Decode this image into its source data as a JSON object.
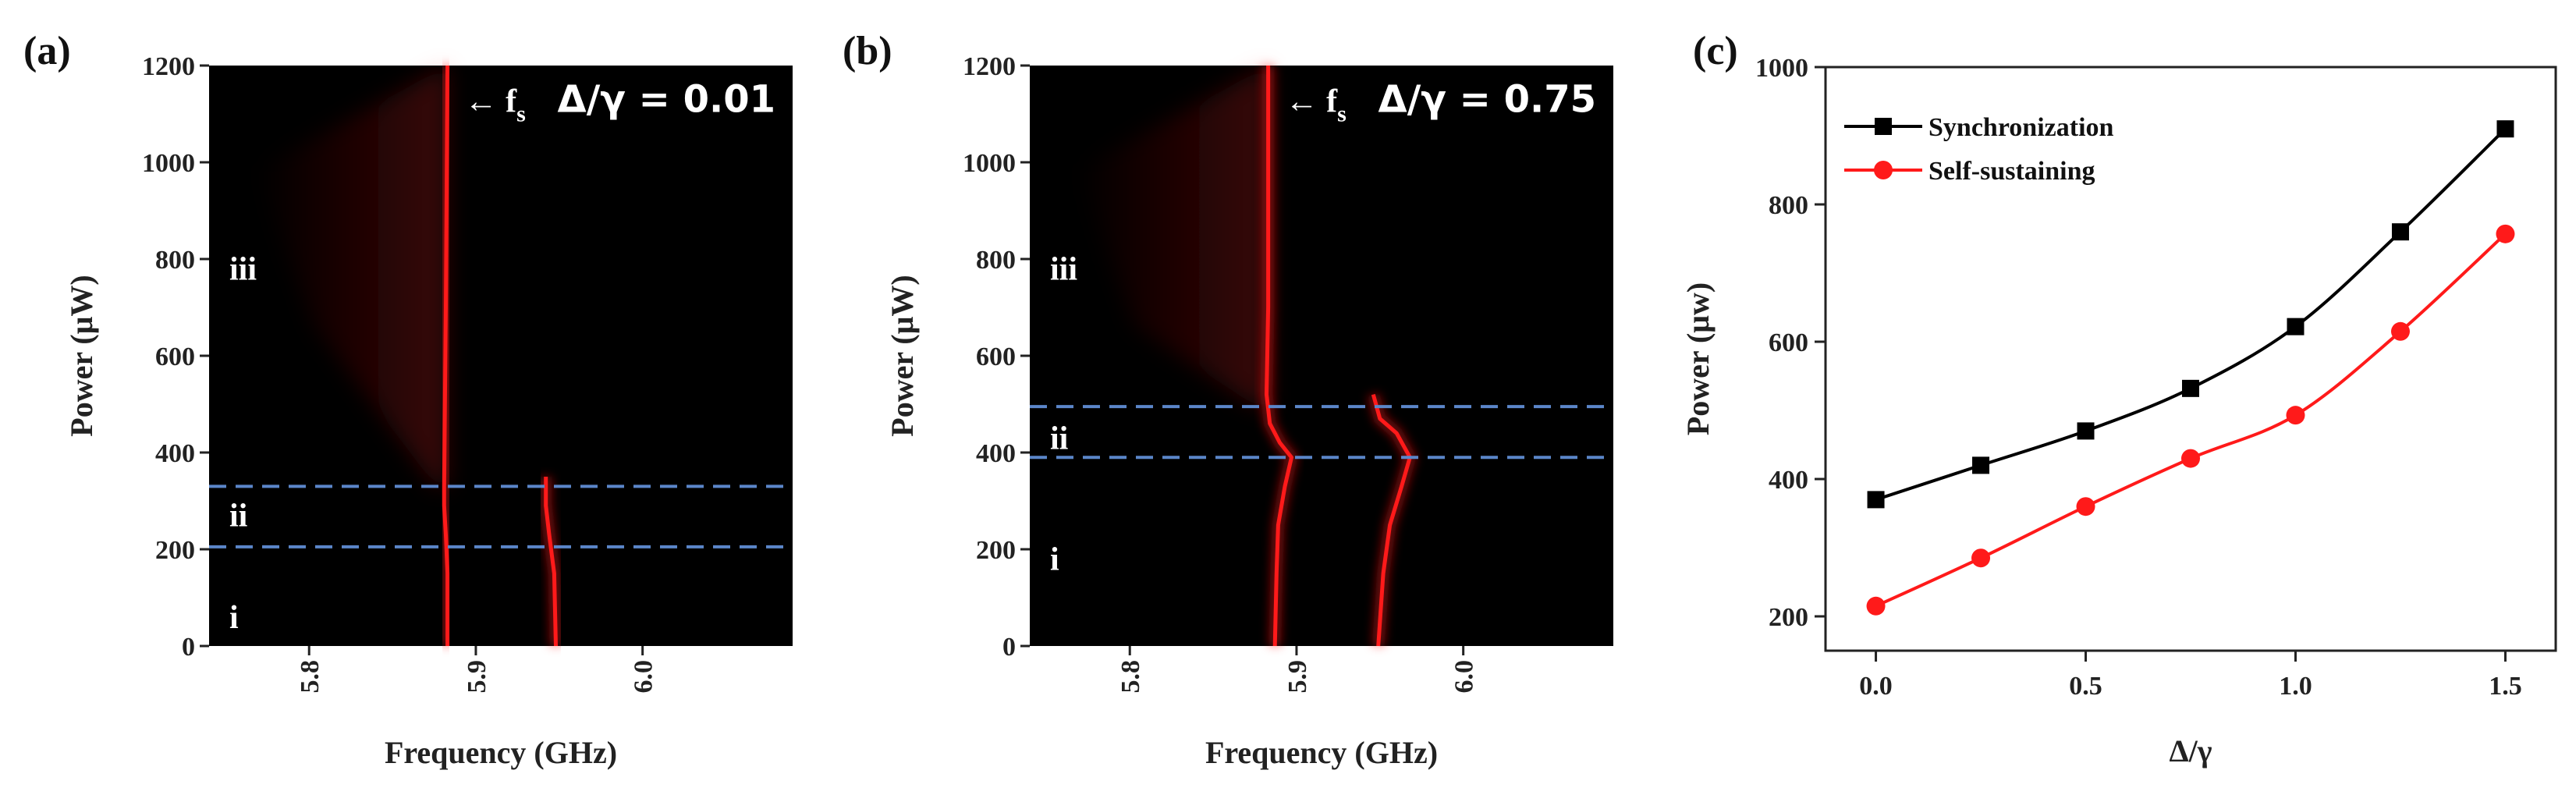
{
  "chart_data": [
    {
      "panel": "(a)",
      "type": "heatmap",
      "xlabel": "Frequency (GHz)",
      "ylabel": "Power (μW)",
      "xlim": [
        5.74,
        6.09
      ],
      "ylim": [
        0,
        1200
      ],
      "x_ticks": [
        "5.8",
        "5.9",
        "6.0"
      ],
      "x_tick_values": [
        5.8,
        5.9,
        6.0
      ],
      "y_ticks": [
        "0",
        "200",
        "400",
        "600",
        "800",
        "1000",
        "1200"
      ],
      "y_tick_values": [
        0,
        200,
        400,
        600,
        800,
        1000,
        1200
      ],
      "ratio_label": "Δ/γ = 0.01",
      "fs_label": "← f",
      "fs_subscript": "s",
      "region_labels": [
        {
          "text": "i",
          "y": 60
        },
        {
          "text": "ii",
          "y": 270
        },
        {
          "text": "iii",
          "y": 780
        }
      ],
      "dashed_lines_y": [
        205,
        330
      ],
      "colors": {
        "background": "#000000",
        "trace": "#ff1a1a",
        "dashed": "#5b86c9"
      },
      "traces": [
        {
          "x": [
            5.883,
            5.883,
            5.882,
            5.881,
            5.881,
            5.882,
            5.883
          ],
          "y": [
            0,
            150,
            230,
            290,
            330,
            700,
            1200
          ]
        },
        {
          "x": [
            5.948,
            5.947,
            5.944,
            5.942,
            5.942
          ],
          "y": [
            0,
            150,
            230,
            290,
            350
          ]
        }
      ]
    },
    {
      "panel": "(b)",
      "type": "heatmap",
      "xlabel": "Frequency (GHz)",
      "ylabel": "Power (μW)",
      "xlim": [
        5.74,
        6.09
      ],
      "ylim": [
        0,
        1200
      ],
      "x_ticks": [
        "5.8",
        "5.9",
        "6.0"
      ],
      "x_tick_values": [
        5.8,
        5.9,
        6.0
      ],
      "y_ticks": [
        "0",
        "200",
        "400",
        "600",
        "800",
        "1000",
        "1200"
      ],
      "y_tick_values": [
        0,
        200,
        400,
        600,
        800,
        1000,
        1200
      ],
      "ratio_label": "Δ/γ = 0.75",
      "fs_label": "← f",
      "fs_subscript": "s",
      "region_labels": [
        {
          "text": "i",
          "y": 180
        },
        {
          "text": "ii",
          "y": 430
        },
        {
          "text": "iii",
          "y": 780
        }
      ],
      "dashed_lines_y": [
        390,
        495
      ],
      "colors": {
        "background": "#000000",
        "trace": "#ff1a1a",
        "dashed": "#5b86c9"
      },
      "traces": [
        {
          "x": [
            5.887,
            5.888,
            5.889,
            5.893,
            5.897,
            5.89,
            5.884,
            5.882,
            5.883,
            5.883
          ],
          "y": [
            0,
            150,
            250,
            330,
            390,
            420,
            460,
            520,
            700,
            1200
          ]
        },
        {
          "x": [
            5.949,
            5.952,
            5.956,
            5.963,
            5.968,
            5.96,
            5.95,
            5.946
          ],
          "y": [
            0,
            150,
            250,
            330,
            390,
            440,
            470,
            520
          ]
        }
      ]
    },
    {
      "panel": "(c)",
      "type": "line",
      "xlabel": "Δ/γ",
      "ylabel": "Power (μw)",
      "xlim": [
        -0.12,
        1.62
      ],
      "ylim": [
        150,
        1000
      ],
      "x_ticks": [
        "0.0",
        "0.5",
        "1.0",
        "1.5"
      ],
      "x_tick_values": [
        0,
        0.5,
        1.0,
        1.5
      ],
      "y_ticks": [
        "200",
        "400",
        "600",
        "800",
        "1000"
      ],
      "y_tick_values": [
        200,
        400,
        600,
        800,
        1000
      ],
      "x": [
        0,
        0.25,
        0.5,
        0.75,
        1.0,
        1.25,
        1.5
      ],
      "series": [
        {
          "name": "Synchronization",
          "color": "#000000",
          "marker": "square",
          "values": [
            370,
            420,
            470,
            532,
            622,
            760,
            910
          ]
        },
        {
          "name": "Self-sustaining",
          "color": "#ff1a1a",
          "marker": "circle",
          "values": [
            215,
            285,
            360,
            430,
            493,
            615,
            757
          ]
        }
      ],
      "legend_position": "top-left",
      "grid": false
    }
  ]
}
